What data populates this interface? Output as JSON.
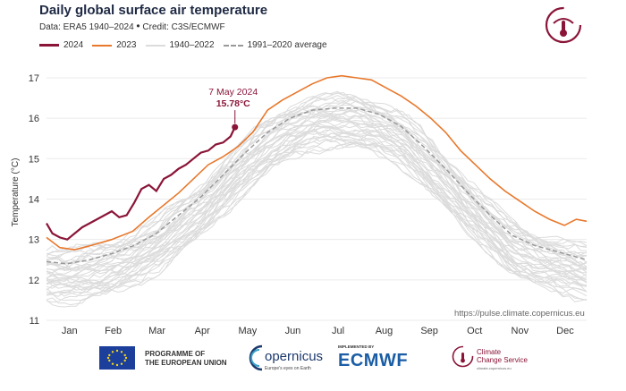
{
  "header": {
    "title": "Daily global surface air temperature",
    "data_text": "Data: ERA5 1940–2024",
    "credit_text": "Credit: C3S/ECMWF",
    "bullet": "•"
  },
  "legend": [
    {
      "label": "2024",
      "color": "#8a1538"
    },
    {
      "label": "2023",
      "color": "#e8782c"
    },
    {
      "label": "1940–2022",
      "color": "#dcdcdc"
    },
    {
      "label": "1991–2020 average",
      "color": "#999999"
    }
  ],
  "source_url": "https://pulse.climate.copernicus.eu",
  "footer": {
    "eu_line1": "PROGRAMME OF",
    "eu_line2": "THE EUROPEAN UNION",
    "copernicus": "opernicus",
    "copernicus_tag": "Europe's eyes on Earth",
    "implemented_by": "IMPLEMENTED BY",
    "ecmwf": "ECMWF",
    "c3s_line1": "Climate",
    "c3s_line2": "Change Service",
    "c3s_tag": "climate.copernicus.eu"
  },
  "chart_data": {
    "type": "line",
    "title": "Daily global surface air temperature",
    "xlabel": "",
    "ylabel": "Temperature (°C)",
    "xlim": [
      1,
      365
    ],
    "ylim": [
      11,
      17
    ],
    "y_ticks": [
      11,
      12,
      13,
      14,
      15,
      16,
      17
    ],
    "x_tick_labels": [
      "Jan",
      "Feb",
      "Mar",
      "Apr",
      "May",
      "Jun",
      "Jul",
      "Aug",
      "Sep",
      "Oct",
      "Nov",
      "Dec"
    ],
    "grid": true,
    "colors": {
      "s2024": "#8a1538",
      "s2023": "#e8782c",
      "historical": "#dcdcdc",
      "average": "#999999"
    },
    "annotation": {
      "date_label": "7 May 2024",
      "value_label": "15.78°C",
      "x": 128,
      "y": 15.78
    },
    "series": [
      {
        "name": "2024",
        "points": [
          [
            1,
            13.4
          ],
          [
            5,
            13.15
          ],
          [
            10,
            13.05
          ],
          [
            15,
            13.0
          ],
          [
            20,
            13.15
          ],
          [
            25,
            13.3
          ],
          [
            30,
            13.4
          ],
          [
            35,
            13.5
          ],
          [
            40,
            13.6
          ],
          [
            45,
            13.7
          ],
          [
            50,
            13.55
          ],
          [
            55,
            13.6
          ],
          [
            60,
            13.9
          ],
          [
            65,
            14.25
          ],
          [
            70,
            14.35
          ],
          [
            75,
            14.2
          ],
          [
            80,
            14.5
          ],
          [
            85,
            14.6
          ],
          [
            90,
            14.75
          ],
          [
            95,
            14.85
          ],
          [
            100,
            15.0
          ],
          [
            105,
            15.15
          ],
          [
            110,
            15.2
          ],
          [
            115,
            15.35
          ],
          [
            120,
            15.4
          ],
          [
            125,
            15.55
          ],
          [
            128,
            15.78
          ]
        ]
      },
      {
        "name": "2023",
        "points": [
          [
            1,
            13.05
          ],
          [
            10,
            12.8
          ],
          [
            20,
            12.75
          ],
          [
            31,
            12.85
          ],
          [
            45,
            13.0
          ],
          [
            59,
            13.2
          ],
          [
            70,
            13.55
          ],
          [
            80,
            13.85
          ],
          [
            90,
            14.15
          ],
          [
            100,
            14.5
          ],
          [
            110,
            14.85
          ],
          [
            120,
            15.05
          ],
          [
            130,
            15.3
          ],
          [
            140,
            15.65
          ],
          [
            150,
            16.2
          ],
          [
            160,
            16.45
          ],
          [
            170,
            16.65
          ],
          [
            180,
            16.85
          ],
          [
            190,
            17.0
          ],
          [
            200,
            17.05
          ],
          [
            210,
            17.0
          ],
          [
            220,
            16.95
          ],
          [
            230,
            16.75
          ],
          [
            240,
            16.55
          ],
          [
            250,
            16.3
          ],
          [
            260,
            16.0
          ],
          [
            270,
            15.65
          ],
          [
            280,
            15.2
          ],
          [
            290,
            14.85
          ],
          [
            300,
            14.5
          ],
          [
            310,
            14.2
          ],
          [
            320,
            13.95
          ],
          [
            330,
            13.7
          ],
          [
            340,
            13.5
          ],
          [
            350,
            13.35
          ],
          [
            358,
            13.5
          ],
          [
            365,
            13.45
          ]
        ]
      },
      {
        "name": "1991–2020 average",
        "points": [
          [
            1,
            12.45
          ],
          [
            15,
            12.4
          ],
          [
            30,
            12.5
          ],
          [
            45,
            12.65
          ],
          [
            60,
            12.85
          ],
          [
            75,
            13.15
          ],
          [
            90,
            13.6
          ],
          [
            105,
            14.05
          ],
          [
            120,
            14.6
          ],
          [
            135,
            15.15
          ],
          [
            150,
            15.65
          ],
          [
            165,
            16.0
          ],
          [
            180,
            16.2
          ],
          [
            195,
            16.25
          ],
          [
            210,
            16.25
          ],
          [
            225,
            16.1
          ],
          [
            240,
            15.8
          ],
          [
            255,
            15.3
          ],
          [
            270,
            14.75
          ],
          [
            285,
            14.15
          ],
          [
            300,
            13.6
          ],
          [
            315,
            13.1
          ],
          [
            330,
            12.85
          ],
          [
            345,
            12.7
          ],
          [
            365,
            12.5
          ]
        ]
      }
    ]
  }
}
